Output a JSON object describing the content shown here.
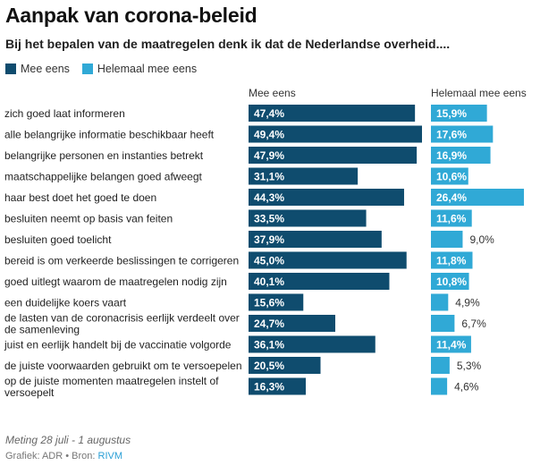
{
  "title": "Aanpak van corona-beleid",
  "subtitle": "Bij het bepalen van de maatregelen denk ik dat de Nederlandse overheid....",
  "legend": {
    "mee_eens": "Mee eens",
    "helemaal_mee_eens": "Helemaal mee eens"
  },
  "footer": {
    "note": "Meting 28 juli - 1 augustus",
    "credit_prefix": "Grafiek: ADR • Bron:",
    "source": "RIVM"
  },
  "colors": {
    "mee_eens": "#0f4c6e",
    "helemaal_mee_eens": "#30a9d6"
  },
  "chart_data": {
    "type": "bar",
    "orientation": "horizontal",
    "title": "Aanpak van corona-beleid",
    "subtitle": "Bij het bepalen van de maatregelen denk ik dat de Nederlandse overheid....",
    "categories": [
      [
        "zich goed laat informeren"
      ],
      [
        "alle belangrijke informatie beschikbaar heeft"
      ],
      [
        "belangrijke personen en instanties betrekt"
      ],
      [
        "maatschappelijke belangen goed afweegt"
      ],
      [
        "haar best doet het goed te doen"
      ],
      [
        "besluiten neemt op basis van feiten"
      ],
      [
        "besluiten goed toelicht"
      ],
      [
        "bereid is om verkeerde beslissingen te corrigeren"
      ],
      [
        "goed uitlegt waarom de maatregelen nodig zijn"
      ],
      [
        "een duidelijke koers vaart"
      ],
      [
        "de lasten van de coronacrisis eerlijk verdeelt over",
        "de samenleving"
      ],
      [
        "juist en eerlijk handelt bij de vaccinatie volgorde"
      ],
      [
        "de juiste voorwaarden gebruikt om te versoepelen"
      ],
      [
        "op de juiste momenten maatregelen instelt of",
        "versoepelt"
      ]
    ],
    "series": [
      {
        "name": "Mee eens",
        "values": [
          47.4,
          49.4,
          47.9,
          31.1,
          44.3,
          33.5,
          37.9,
          45.0,
          40.1,
          15.6,
          24.7,
          36.1,
          20.5,
          16.3
        ],
        "labels": [
          "47,4%",
          "49,4%",
          "47,9%",
          "31,1%",
          "44,3%",
          "33,5%",
          "37,9%",
          "45,0%",
          "40,1%",
          "15,6%",
          "24,7%",
          "36,1%",
          "20,5%",
          "16,3%"
        ]
      },
      {
        "name": "Helemaal mee eens",
        "values": [
          15.9,
          17.6,
          16.9,
          10.6,
          26.4,
          11.6,
          9.0,
          11.8,
          10.8,
          4.9,
          6.7,
          11.4,
          5.3,
          4.6
        ],
        "labels": [
          "15,9%",
          "17,6%",
          "16,9%",
          "10,6%",
          "26,4%",
          "11,6%",
          "9,0%",
          "11,8%",
          "10,8%",
          "4,9%",
          "6,7%",
          "11,4%",
          "5,3%",
          "4,6%"
        ]
      }
    ],
    "legend_position": "top-left",
    "grid": false
  }
}
